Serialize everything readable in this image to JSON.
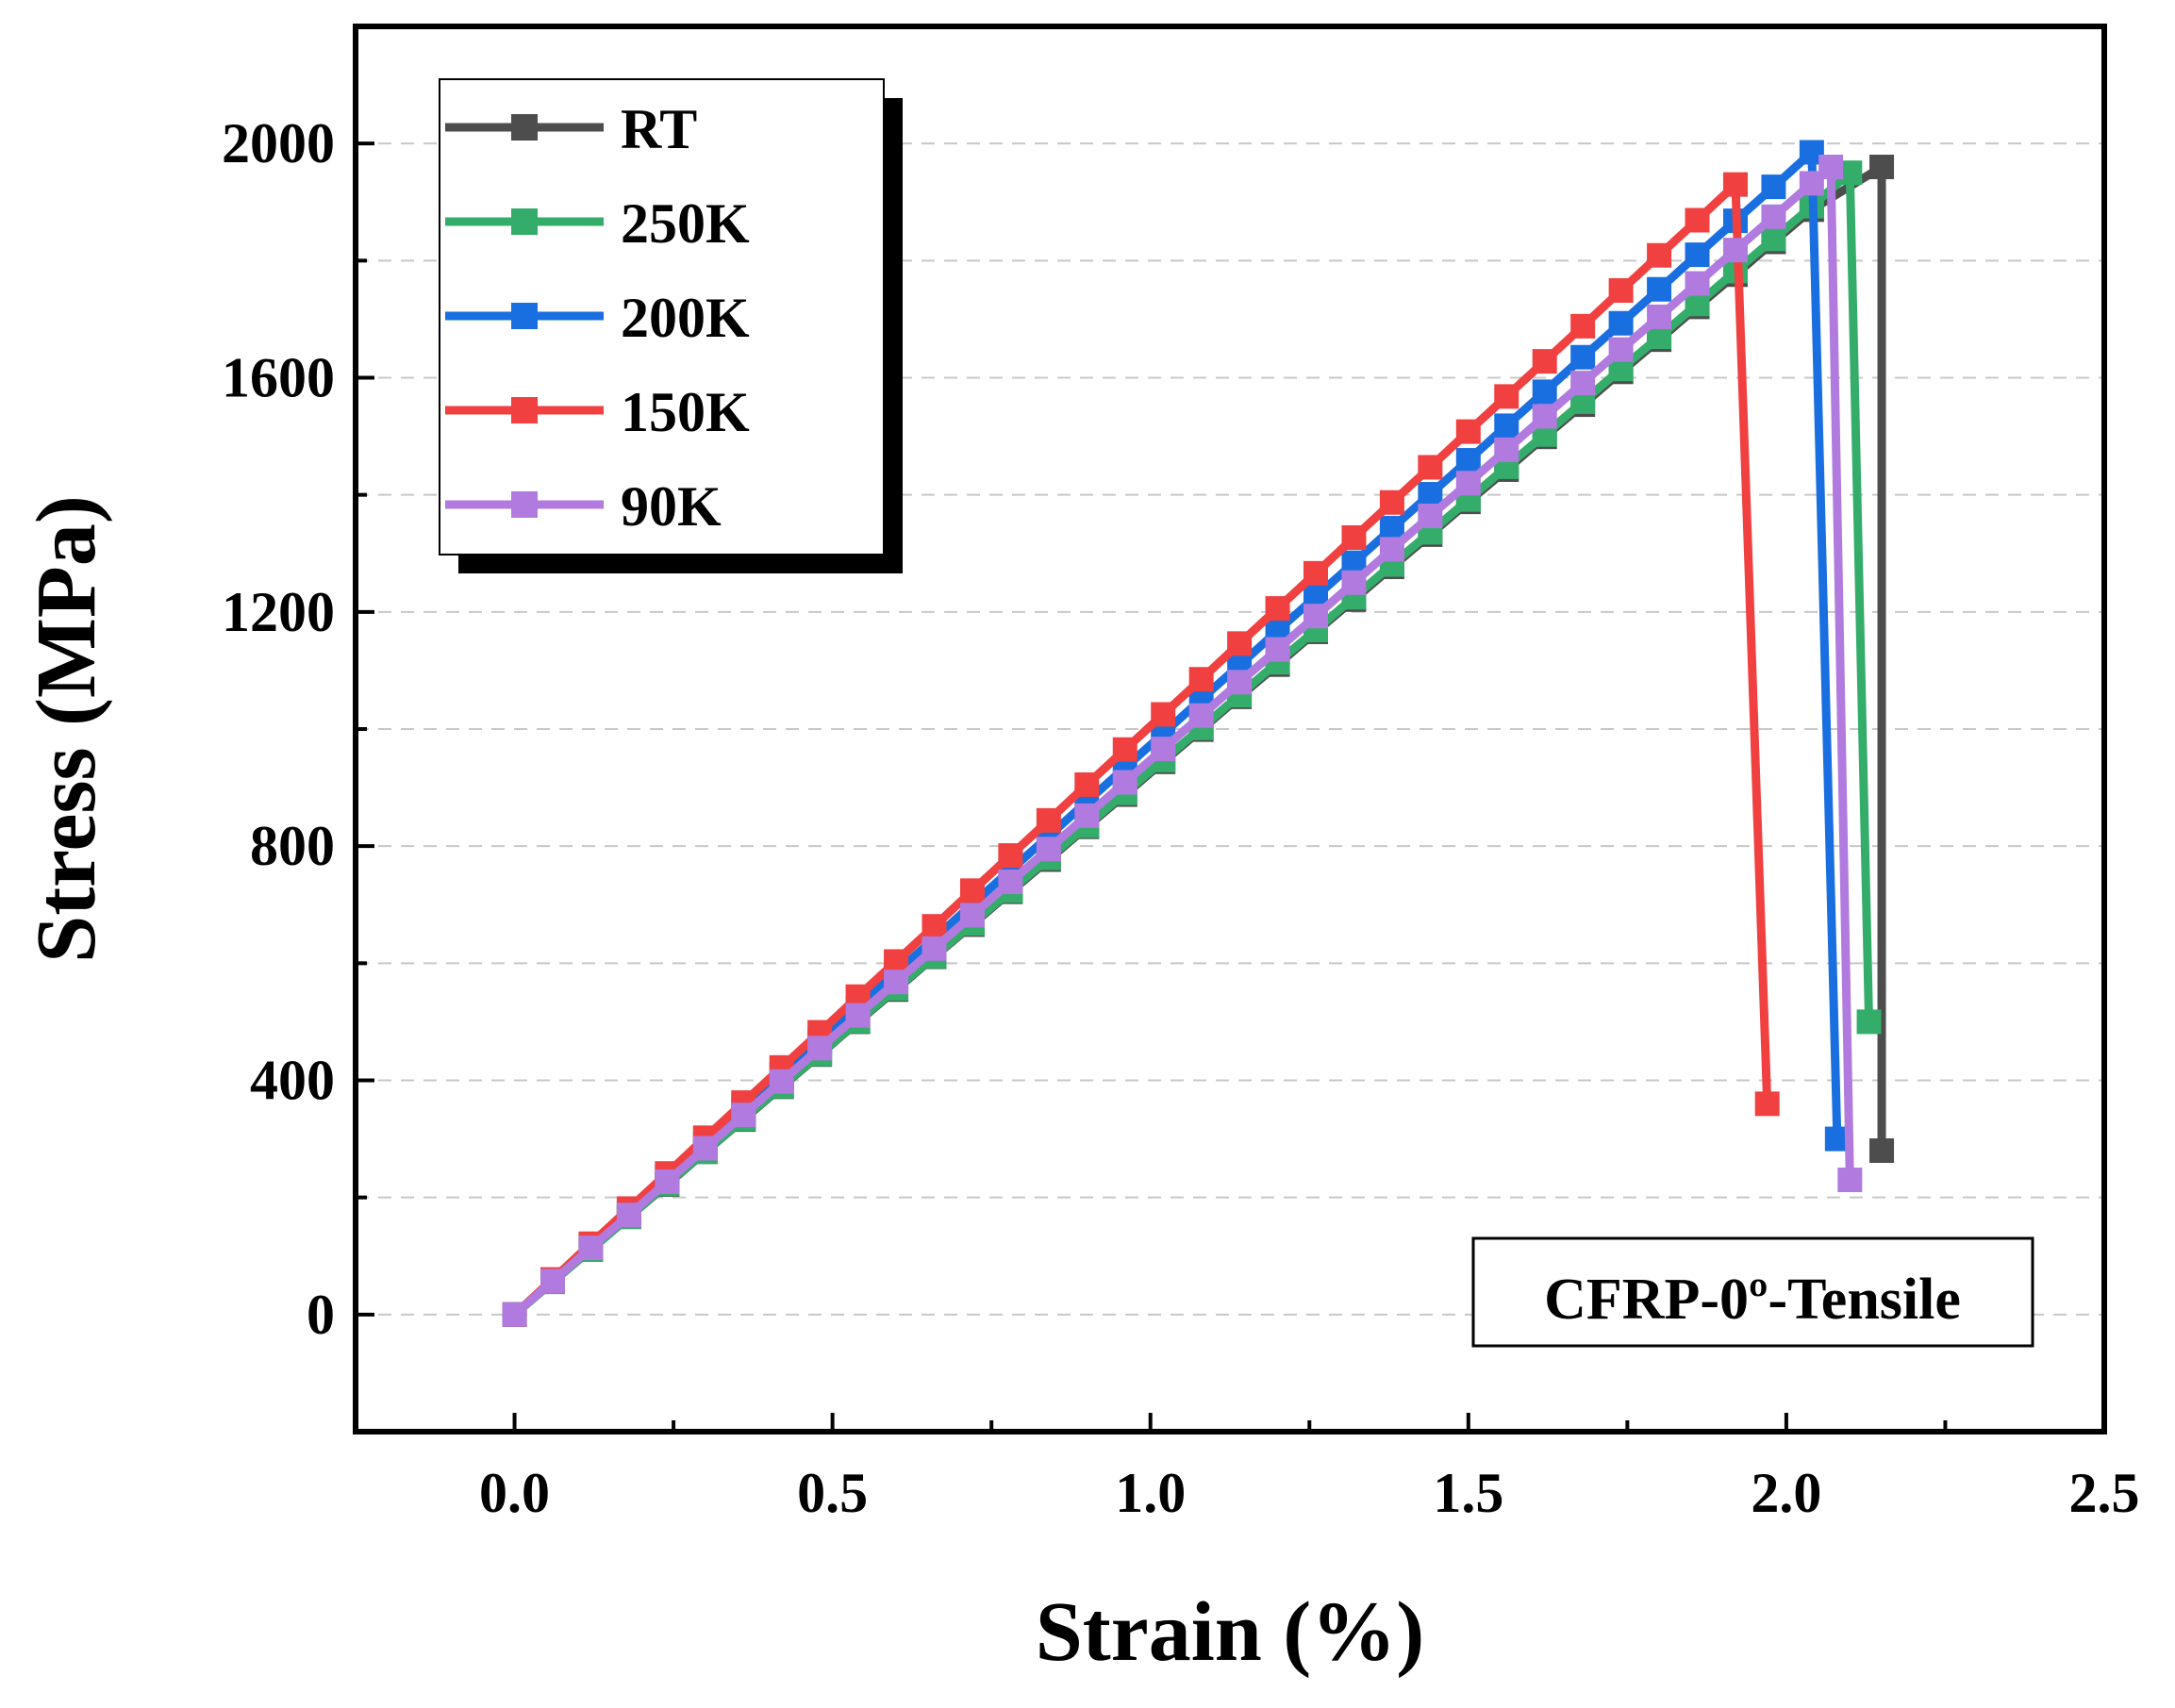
{
  "chart_data": {
    "type": "line",
    "title": "",
    "xlabel": "Strain (%)",
    "ylabel": "Stress (MPa)",
    "xlim": [
      -0.25,
      2.5
    ],
    "ylim": [
      -200,
      2200
    ],
    "xticks": [
      "0.0",
      "0.5",
      "1.0",
      "1.5",
      "2.0",
      "2.5"
    ],
    "xtick_values": [
      0,
      0.5,
      1.0,
      1.5,
      2.0,
      2.5
    ],
    "yticks": [
      "0",
      "400",
      "800",
      "1200",
      "1600",
      "2000"
    ],
    "ytick_values": [
      0,
      400,
      800,
      1200,
      1600,
      2000
    ],
    "grid": "horizontal dashed",
    "legend_position": "top-left",
    "annotation": "CFRP-0º-Tensile",
    "series": [
      {
        "name": "RT",
        "color": "#4d4d4d",
        "x_start": 0,
        "x_step": 0.06,
        "y": [
          0,
          56,
          111,
          167,
          222,
          278,
          333,
          389,
          444,
          500,
          555,
          611,
          666,
          722,
          777,
          833,
          888,
          944,
          999,
          1055,
          1110,
          1166,
          1221,
          1277,
          1332,
          1388,
          1443,
          1499,
          1554,
          1610,
          1665,
          1721,
          1776,
          1832,
          1887
        ],
        "tail": [
          [
            2.15,
            1960
          ],
          [
            2.15,
            280
          ]
        ]
      },
      {
        "name": "250K",
        "color": "#34ad6a",
        "x_start": 0,
        "x_step": 0.06,
        "y": [
          0,
          56,
          111,
          167,
          223,
          278,
          334,
          390,
          445,
          501,
          557,
          612,
          668,
          724,
          780,
          835,
          891,
          947,
          1002,
          1058,
          1114,
          1169,
          1225,
          1281,
          1336,
          1392,
          1448,
          1503,
          1559,
          1615,
          1670,
          1726,
          1782,
          1837,
          1893
        ],
        "tail": [
          [
            2.1,
            1950
          ],
          [
            2.13,
            500
          ]
        ]
      },
      {
        "name": "200K",
        "color": "#1a6fe0",
        "x_start": 0,
        "x_step": 0.06,
        "y": [
          0,
          58,
          117,
          175,
          234,
          292,
          350,
          409,
          467,
          525,
          584,
          642,
          701,
          759,
          817,
          876,
          934,
          992,
          1051,
          1109,
          1168,
          1226,
          1284,
          1343,
          1401,
          1459,
          1518,
          1576,
          1635,
          1693,
          1751,
          1810,
          1868,
          1926,
          1985
        ],
        "tail": [
          [
            2.08,
            300
          ]
        ]
      },
      {
        "name": "150K",
        "color": "#f04040",
        "x_start": 0,
        "x_step": 0.06,
        "y": [
          0,
          60,
          121,
          181,
          241,
          302,
          362,
          422,
          482,
          543,
          603,
          663,
          724,
          784,
          844,
          905,
          965,
          1025,
          1085,
          1146,
          1206,
          1266,
          1327,
          1387,
          1447,
          1508,
          1568,
          1628,
          1688,
          1749,
          1809,
          1869,
          1930
        ],
        "tail": [
          [
            1.97,
            360
          ]
        ]
      },
      {
        "name": "90K",
        "color": "#b07adf",
        "x_start": 0,
        "x_step": 0.06,
        "y": [
          0,
          57,
          114,
          170,
          227,
          284,
          341,
          398,
          455,
          511,
          568,
          625,
          682,
          739,
          795,
          852,
          909,
          966,
          1023,
          1080,
          1136,
          1193,
          1250,
          1307,
          1364,
          1420,
          1477,
          1534,
          1591,
          1648,
          1704,
          1761,
          1818,
          1875,
          1932
        ],
        "tail": [
          [
            2.07,
            1960
          ],
          [
            2.1,
            230
          ]
        ]
      }
    ]
  }
}
